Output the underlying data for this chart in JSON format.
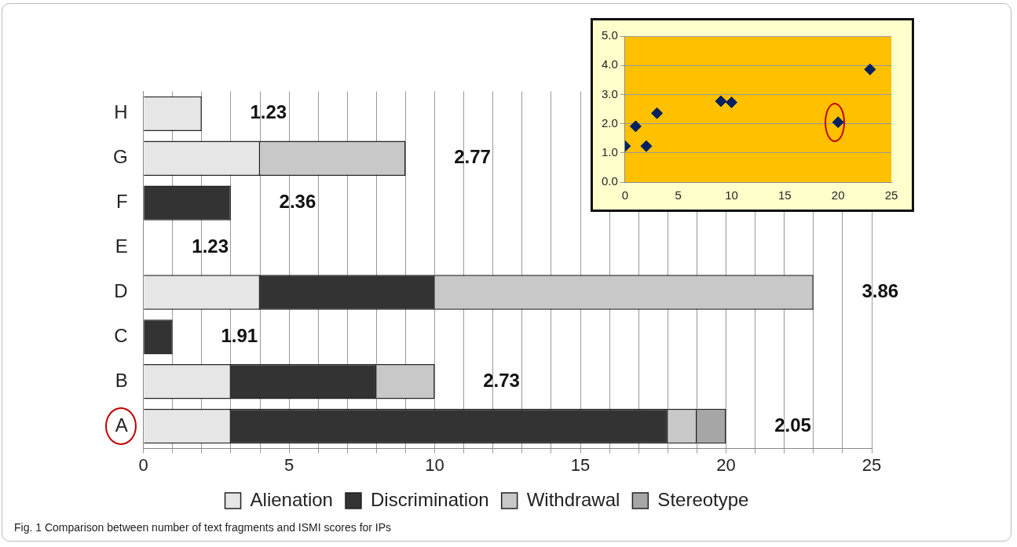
{
  "chart_data": [
    {
      "type": "bar",
      "orientation": "horizontal",
      "stacked": true,
      "categories": [
        "H",
        "G",
        "F",
        "E",
        "D",
        "C",
        "B",
        "A"
      ],
      "series": [
        {
          "name": "Alienation",
          "color": "#e6e6e6",
          "values": [
            2,
            4,
            0,
            0,
            4,
            0,
            3,
            3
          ]
        },
        {
          "name": "Discrimination",
          "color": "#333333",
          "values": [
            0,
            0,
            3,
            0,
            6,
            1,
            5,
            15
          ]
        },
        {
          "name": "Withdrawal",
          "color": "#c8c8c8",
          "values": [
            0,
            5,
            0,
            0,
            13,
            0,
            2,
            1
          ]
        },
        {
          "name": "Stereotype",
          "color": "#a6a6a6",
          "values": [
            0,
            0,
            0,
            0,
            0,
            0,
            0,
            1
          ]
        }
      ],
      "xlim": [
        0,
        25
      ],
      "xticks": [
        0,
        {
          "value": 1,
          "label": null
        },
        {
          "value": 2,
          "label": null
        },
        {
          "value": 3,
          "label": null
        },
        {
          "value": 4,
          "label": null
        },
        5,
        {
          "value": 6,
          "label": null
        },
        {
          "value": 7,
          "label": null
        },
        {
          "value": 8,
          "label": null
        },
        {
          "value": 9,
          "label": null
        },
        10,
        {
          "value": 11,
          "label": null
        },
        {
          "value": 12,
          "label": null
        },
        {
          "value": 13,
          "label": null
        },
        {
          "value": 14,
          "label": null
        },
        15,
        {
          "value": 16,
          "label": null
        },
        {
          "value": 17,
          "label": null
        },
        {
          "value": 18,
          "label": null
        },
        {
          "value": 19,
          "label": null
        },
        20,
        {
          "value": 21,
          "label": null
        },
        {
          "value": 22,
          "label": null
        },
        {
          "value": 23,
          "label": null
        },
        {
          "value": 24,
          "label": null
        },
        25
      ],
      "grid": "x",
      "legend": "bottom",
      "annotations": [
        "1.23",
        "2.77",
        "2.36",
        "1.23",
        "3.86",
        "1.91",
        "2.73",
        "2.05",
        "Fig. 1  Comparison between number of text fragments and ISMI scores for IPs"
      ]
    },
    {
      "type": "scatter",
      "series": [
        {
          "color": "#002060",
          "x": [
            0,
            1,
            2,
            3,
            9,
            10,
            20,
            23
          ],
          "values": [
            1.23,
            1.91,
            1.23,
            2.36,
            2.77,
            2.73,
            2.05,
            3.86
          ]
        }
      ],
      "xlim": [
        0,
        25
      ],
      "xticks": [
        0,
        5,
        10,
        15,
        20,
        25
      ],
      "ylim": [
        0,
        5
      ],
      "yticks": [
        {
          "value": 0,
          "label": "0.0"
        },
        {
          "value": 1,
          "label": "1.0"
        },
        {
          "value": 2,
          "label": "2.0"
        },
        {
          "value": 3,
          "label": "3.0"
        },
        {
          "value": 4,
          "label": "4.0"
        },
        {
          "value": 5,
          "label": "5.0"
        }
      ],
      "grid": "y",
      "marker": "diamond"
    }
  ]
}
